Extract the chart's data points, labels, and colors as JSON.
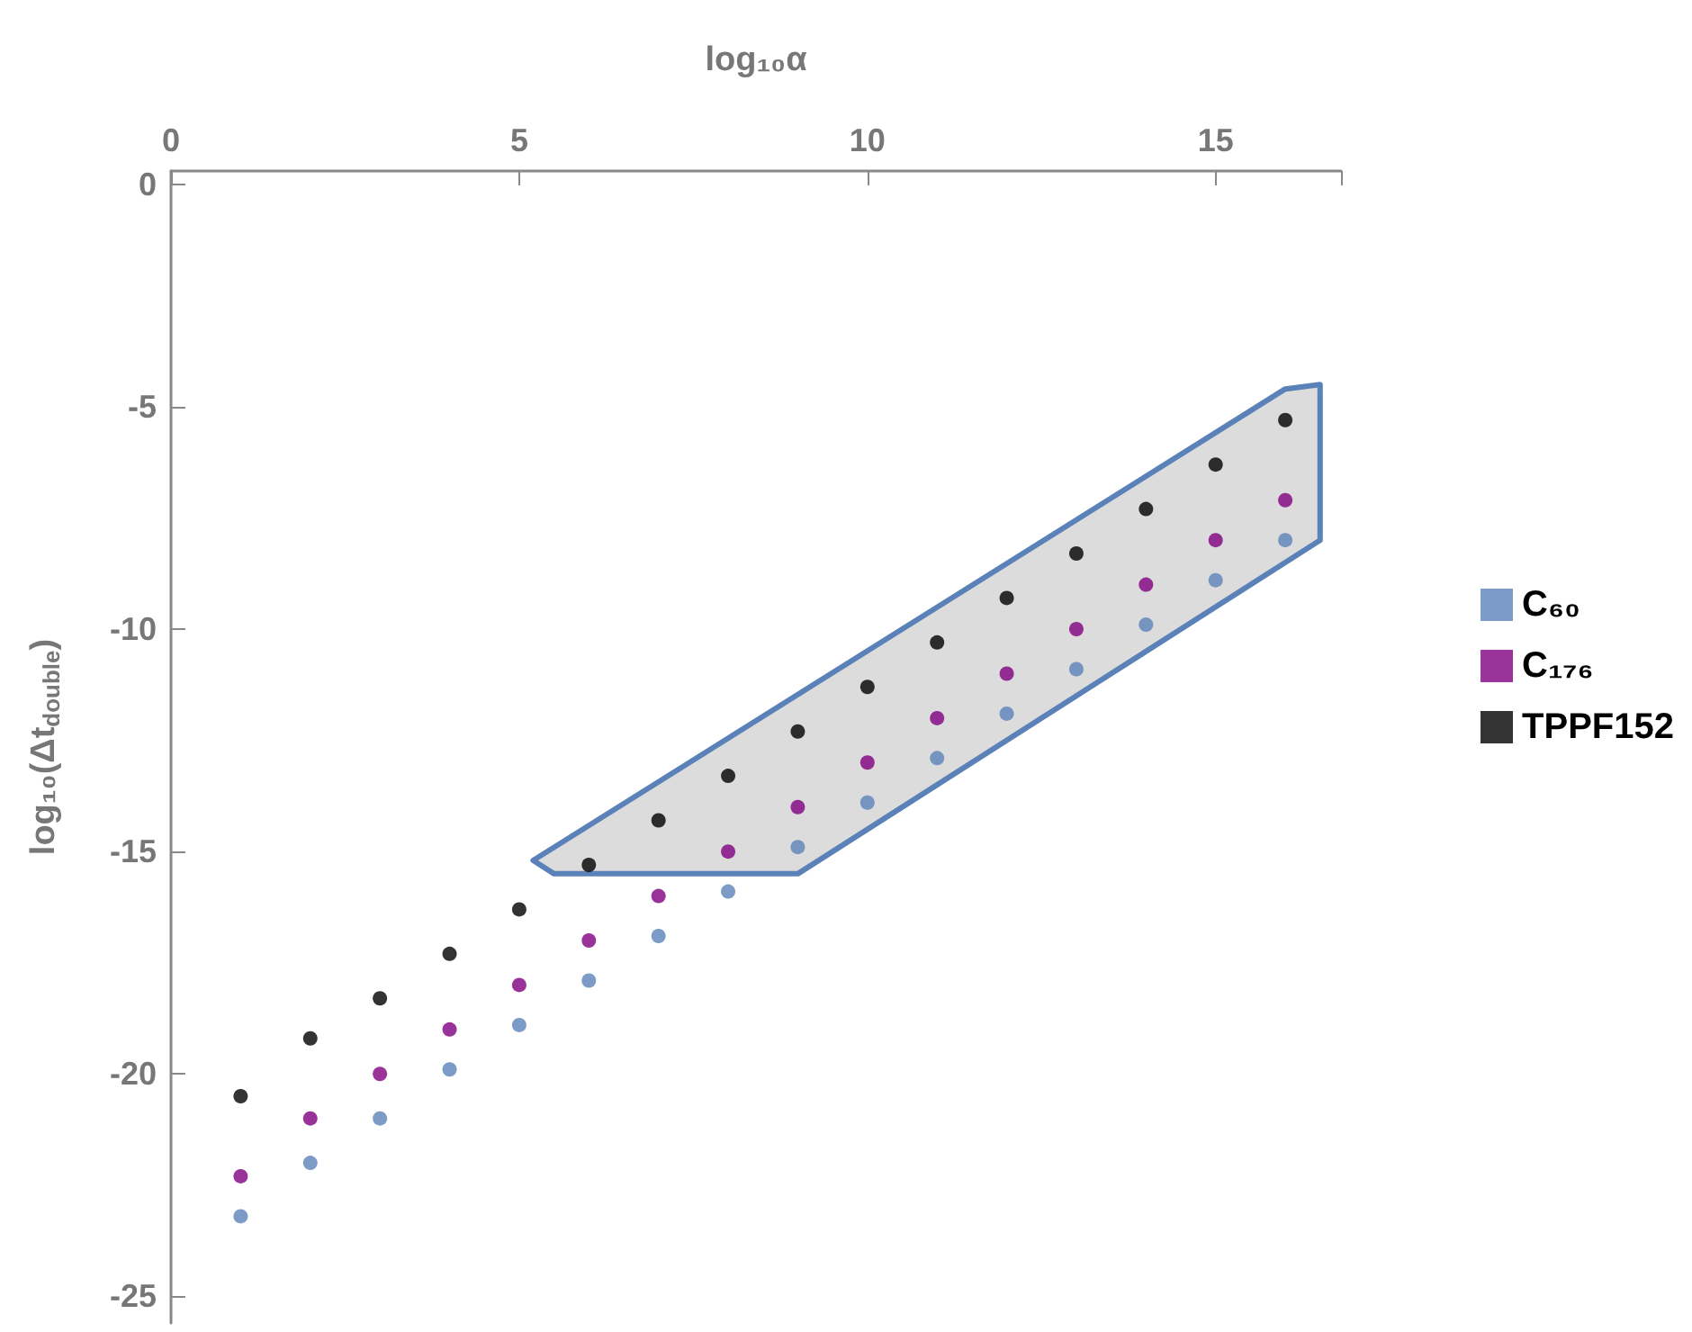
{
  "chart_data": {
    "type": "scatter",
    "xlabel": "log₁₀α",
    "ylabel": "log₁₀(Δt$_{double}$)",
    "x": [
      1,
      2,
      3,
      4,
      5,
      6,
      7,
      8,
      9,
      10,
      11,
      12,
      13,
      14,
      15,
      16
    ],
    "series": [
      {
        "type": "area",
        "marker": "none",
        "color": "#5b82b8",
        "x": [
          5.2,
          16,
          16.5,
          16.5,
          9,
          5.5,
          5.2
        ],
        "values": [
          -15.2,
          -4.6,
          -4.5,
          -8,
          -15.5,
          -15.5,
          -15.2
        ]
      },
      {
        "name": "C₆₀",
        "color": "#5b82b8",
        "values": [
          -23.2,
          -22,
          -21,
          -19.9,
          -18.9,
          -17.9,
          -16.9,
          -15.9,
          -14.9,
          -13.9,
          -12.9,
          -11.9,
          -10.9,
          -9.9,
          -8.9,
          -8.0
        ]
      },
      {
        "name": "C₁₇₆",
        "color": "#800080",
        "values": [
          -22.3,
          -21,
          -20,
          -19,
          -18,
          -17,
          -16,
          -15,
          -14,
          -13,
          -12,
          -11,
          -10,
          -9,
          -8,
          -7.1
        ]
      },
      {
        "name": "TPPF152",
        "color": "#000000",
        "values": [
          -20.5,
          -19.2,
          -18.3,
          -17.3,
          -16.3,
          -15.3,
          -14.3,
          -13.3,
          -12.3,
          -11.3,
          -10.3,
          -9.3,
          -8.3,
          -7.3,
          -6.3,
          -5.3
        ]
      }
    ],
    "xlim": [
      0,
      16.8
    ],
    "xticks": [
      0,
      5,
      10,
      15
    ],
    "ylim": [
      -25.6,
      0.3
    ],
    "yticks": [
      -25,
      -20,
      -15,
      -10,
      -5,
      0
    ],
    "marker": "circle",
    "grid": false,
    "legend": "right"
  }
}
